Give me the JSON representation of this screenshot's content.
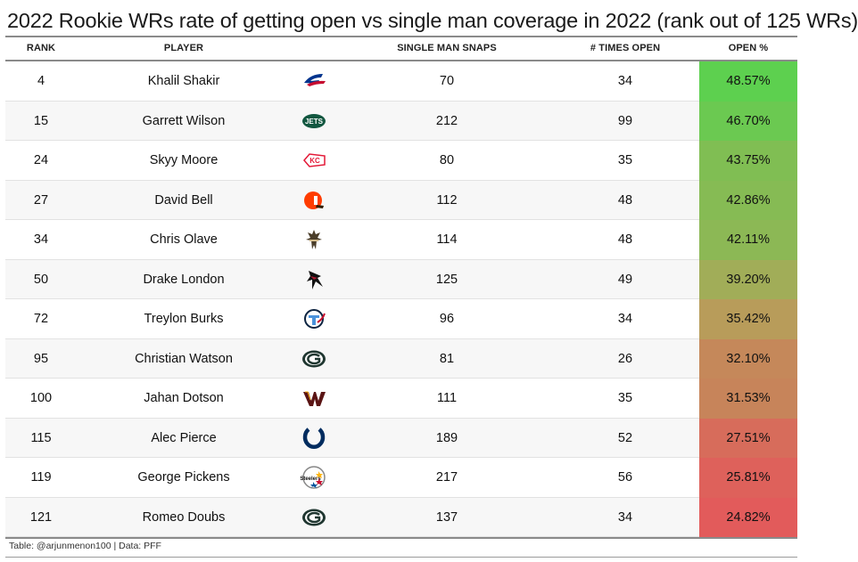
{
  "title": "2022 Rookie WRs rate of getting open vs single man coverage in 2022 (rank out of 125 WRs)",
  "headers": {
    "rank": "RANK",
    "player": "PLAYER",
    "snaps": "SINGLE MAN SNAPS",
    "times_open": "# TIMES OPEN",
    "open_pct": "OPEN %"
  },
  "footer": "Table: @arjunmenon100 | Data: PFF",
  "chart_data": {
    "type": "table",
    "title": "2022 Rookie WRs rate of getting open vs single man coverage in 2022 (rank out of 125 WRs)",
    "columns": [
      "RANK",
      "PLAYER",
      "SINGLE MAN SNAPS",
      "# TIMES OPEN",
      "OPEN %"
    ],
    "rows": [
      {
        "rank": "4",
        "player": "Khalil Shakir",
        "team_logo": "bills-logo-icon",
        "snaps": "70",
        "times_open": "34",
        "open_pct": "48.57%",
        "open_value": 48.57
      },
      {
        "rank": "15",
        "player": "Garrett Wilson",
        "team_logo": "jets-logo-icon",
        "snaps": "212",
        "times_open": "99",
        "open_pct": "46.70%",
        "open_value": 46.7
      },
      {
        "rank": "24",
        "player": "Skyy Moore",
        "team_logo": "chiefs-logo-icon",
        "snaps": "80",
        "times_open": "35",
        "open_pct": "43.75%",
        "open_value": 43.75
      },
      {
        "rank": "27",
        "player": "David Bell",
        "team_logo": "browns-logo-icon",
        "snaps": "112",
        "times_open": "48",
        "open_pct": "42.86%",
        "open_value": 42.86
      },
      {
        "rank": "34",
        "player": "Chris Olave",
        "team_logo": "saints-logo-icon",
        "snaps": "114",
        "times_open": "48",
        "open_pct": "42.11%",
        "open_value": 42.11
      },
      {
        "rank": "50",
        "player": "Drake London",
        "team_logo": "falcons-logo-icon",
        "snaps": "125",
        "times_open": "49",
        "open_pct": "39.20%",
        "open_value": 39.2
      },
      {
        "rank": "72",
        "player": "Treylon Burks",
        "team_logo": "titans-logo-icon",
        "snaps": "96",
        "times_open": "34",
        "open_pct": "35.42%",
        "open_value": 35.42
      },
      {
        "rank": "95",
        "player": "Christian Watson",
        "team_logo": "packers-logo-icon",
        "snaps": "81",
        "times_open": "26",
        "open_pct": "32.10%",
        "open_value": 32.1
      },
      {
        "rank": "100",
        "player": "Jahan Dotson",
        "team_logo": "commanders-logo-icon",
        "snaps": "111",
        "times_open": "35",
        "open_pct": "31.53%",
        "open_value": 31.53
      },
      {
        "rank": "115",
        "player": "Alec Pierce",
        "team_logo": "colts-logo-icon",
        "snaps": "189",
        "times_open": "52",
        "open_pct": "27.51%",
        "open_value": 27.51
      },
      {
        "rank": "119",
        "player": "George Pickens",
        "team_logo": "steelers-logo-icon",
        "snaps": "217",
        "times_open": "56",
        "open_pct": "25.81%",
        "open_value": 25.81
      },
      {
        "rank": "121",
        "player": "Romeo Doubs",
        "team_logo": "packers-logo-icon",
        "snaps": "137",
        "times_open": "34",
        "open_pct": "24.82%",
        "open_value": 24.82
      }
    ],
    "color_scale": {
      "high": "#5dd04f",
      "mid": "#b3a45a",
      "low": "#e25b5b"
    }
  }
}
